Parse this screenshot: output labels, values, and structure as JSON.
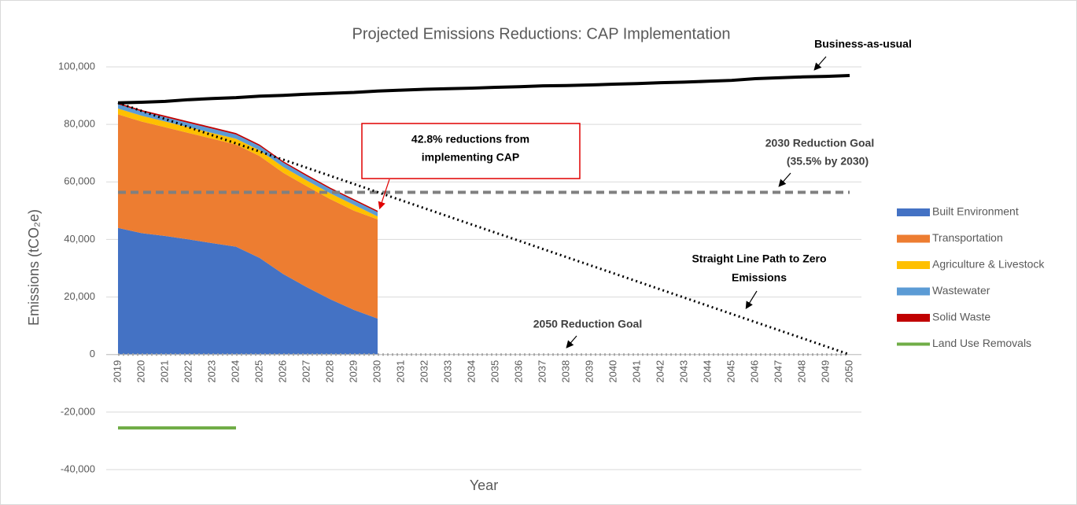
{
  "chart_data": {
    "type": "stacked-area",
    "title": "Projected Emissions Reductions: CAP Implementation",
    "x_label": "Year",
    "y_label": "Emissions (tCO₂e)",
    "categories": [
      "2019",
      "2020",
      "2021",
      "2022",
      "2023",
      "2024",
      "2025",
      "2026",
      "2027",
      "2028",
      "2029",
      "2030",
      "2031",
      "2032",
      "2033",
      "2034",
      "2035",
      "2036",
      "2037",
      "2038",
      "2039",
      "2040",
      "2041",
      "2042",
      "2043",
      "2044",
      "2045",
      "2046",
      "2047",
      "2048",
      "2049",
      "2050"
    ],
    "ylim": [
      -40000,
      100000
    ],
    "yticks": [
      {
        "value": -40000,
        "label": "-40,000"
      },
      {
        "value": -20000,
        "label": "-20,000"
      },
      0,
      {
        "value": 20000,
        "label": "20,000"
      },
      {
        "value": 40000,
        "label": "40,000"
      },
      {
        "value": 60000,
        "label": "60,000"
      },
      {
        "value": 80000,
        "label": "80,000"
      },
      {
        "value": 100000,
        "label": "100,000"
      }
    ],
    "grid": true,
    "legend": "right",
    "series": [
      {
        "name": "Built Environment",
        "kind": "area",
        "color": "#4472c4",
        "values": [
          44000,
          42200,
          41200,
          40000,
          38700,
          37500,
          33600,
          28000,
          23400,
          19200,
          15500,
          12500,
          null,
          null,
          null,
          null,
          null,
          null,
          null,
          null,
          null,
          null,
          null,
          null,
          null,
          null,
          null,
          null,
          null,
          null,
          null,
          null
        ]
      },
      {
        "name": "Transportation",
        "kind": "area",
        "color": "#ed7d31",
        "values": [
          39500,
          38800,
          37800,
          37000,
          36300,
          35500,
          35400,
          35200,
          35100,
          34800,
          34500,
          34500,
          null,
          null,
          null,
          null,
          null,
          null,
          null,
          null,
          null,
          null,
          null,
          null,
          null,
          null,
          null,
          null,
          null,
          null,
          null,
          null
        ]
      },
      {
        "name": "Agriculture & Livestock",
        "kind": "area",
        "color": "#ffc000",
        "values": [
          2000,
          2000,
          2000,
          2000,
          2000,
          2000,
          2000,
          2000,
          2000,
          2000,
          2000,
          1000,
          null,
          null,
          null,
          null,
          null,
          null,
          null,
          null,
          null,
          null,
          null,
          null,
          null,
          null,
          null,
          null,
          null,
          null,
          null,
          null
        ]
      },
      {
        "name": "Wastewater",
        "kind": "area",
        "color": "#5b9bd5",
        "values": [
          1500,
          1500,
          1500,
          1500,
          1500,
          1500,
          1500,
          1500,
          1500,
          1500,
          1500,
          1500,
          null,
          null,
          null,
          null,
          null,
          null,
          null,
          null,
          null,
          null,
          null,
          null,
          null,
          null,
          null,
          null,
          null,
          null,
          null,
          null
        ]
      },
      {
        "name": "Solid Waste",
        "kind": "area",
        "color": "#c00000",
        "values": [
          500,
          500,
          500,
          500,
          500,
          500,
          500,
          500,
          500,
          500,
          500,
          500,
          null,
          null,
          null,
          null,
          null,
          null,
          null,
          null,
          null,
          null,
          null,
          null,
          null,
          null,
          null,
          null,
          null,
          null,
          null,
          null
        ]
      },
      {
        "name": "Land Use Removals",
        "kind": "line",
        "color": "#70ad47",
        "values": [
          -25500,
          -25500,
          -25500,
          -25500,
          -25500,
          -25500,
          null,
          null,
          null,
          null,
          null,
          null,
          null,
          null,
          null,
          null,
          null,
          null,
          null,
          null,
          null,
          null,
          null,
          null,
          null,
          null,
          null,
          null,
          null,
          null,
          null,
          null
        ]
      }
    ],
    "lines": [
      {
        "label": [
          "Business-as-usual"
        ],
        "color": "#000000",
        "style": "solid",
        "values": [
          87500,
          87700,
          88000,
          88600,
          89000,
          89300,
          89800,
          90100,
          90500,
          90800,
          91100,
          91600,
          91900,
          92200,
          92400,
          92600,
          92900,
          93100,
          93400,
          93500,
          93700,
          94000,
          94200,
          94500,
          94700,
          95000,
          95300,
          95900,
          96200,
          96500,
          96700,
          97000
        ]
      },
      {
        "label": [
          "Straight Line Path to Zero",
          "Emissions"
        ],
        "color": "#000000",
        "style": "dotted",
        "values": [
          87500,
          84677,
          81855,
          79032,
          76210,
          73387,
          70565,
          67742,
          64919,
          62097,
          59274,
          56452,
          53629,
          50806,
          47984,
          45161,
          42339,
          39516,
          36694,
          33871,
          31048,
          28226,
          25403,
          22581,
          19758,
          16935,
          14113,
          11290,
          8468,
          5645,
          2823,
          0
        ]
      }
    ],
    "reference_lines": [
      {
        "label": [
          "2030 Reduction Goal",
          "(35.5% by 2030)"
        ],
        "value": 56400,
        "color": "#808080",
        "style": "dashed"
      },
      {
        "label": [
          "2050 Reduction Goal"
        ],
        "value": 0,
        "color": "#a6a6a6",
        "style": "dotted"
      }
    ],
    "annotations": [
      [
        "42.8% reductions from",
        "implementing CAP"
      ]
    ]
  }
}
